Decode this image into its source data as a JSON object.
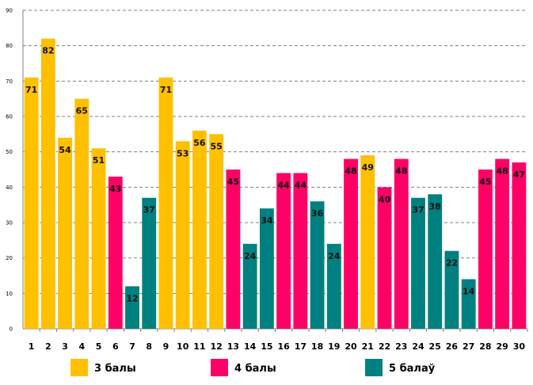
{
  "chart_data": {
    "type": "bar",
    "title": "",
    "xlabel": "",
    "ylabel": "",
    "ylim": [
      0,
      90
    ],
    "yticks": [
      0,
      10,
      20,
      30,
      40,
      50,
      60,
      70,
      80,
      90
    ],
    "grid": true,
    "legend_position": "bottom",
    "categories": [
      "1",
      "2",
      "3",
      "4",
      "5",
      "6",
      "7",
      "8",
      "9",
      "10",
      "11",
      "12",
      "13",
      "14",
      "15",
      "16",
      "17",
      "18",
      "19",
      "20",
      "21",
      "22",
      "23",
      "24",
      "25",
      "26",
      "27",
      "28",
      "29",
      "30"
    ],
    "values": [
      71,
      82,
      54,
      65,
      51,
      43,
      12,
      37,
      71,
      53,
      56,
      55,
      45,
      24,
      34,
      44,
      44,
      36,
      24,
      48,
      49,
      40,
      48,
      37,
      38,
      22,
      14,
      45,
      48,
      47
    ],
    "groups": [
      "3",
      "3",
      "3",
      "3",
      "3",
      "4",
      "5",
      "5",
      "3",
      "3",
      "3",
      "3",
      "4",
      "5",
      "5",
      "4",
      "4",
      "5",
      "5",
      "4",
      "3",
      "4",
      "4",
      "5",
      "5",
      "5",
      "5",
      "4",
      "4",
      "4"
    ],
    "legend": [
      {
        "key": "3",
        "label": "3 балы",
        "color": "#FFC000"
      },
      {
        "key": "4",
        "label": "4 балы",
        "color": "#FF0066"
      },
      {
        "key": "5",
        "label": "5 балаў",
        "color": "#008080"
      }
    ]
  }
}
